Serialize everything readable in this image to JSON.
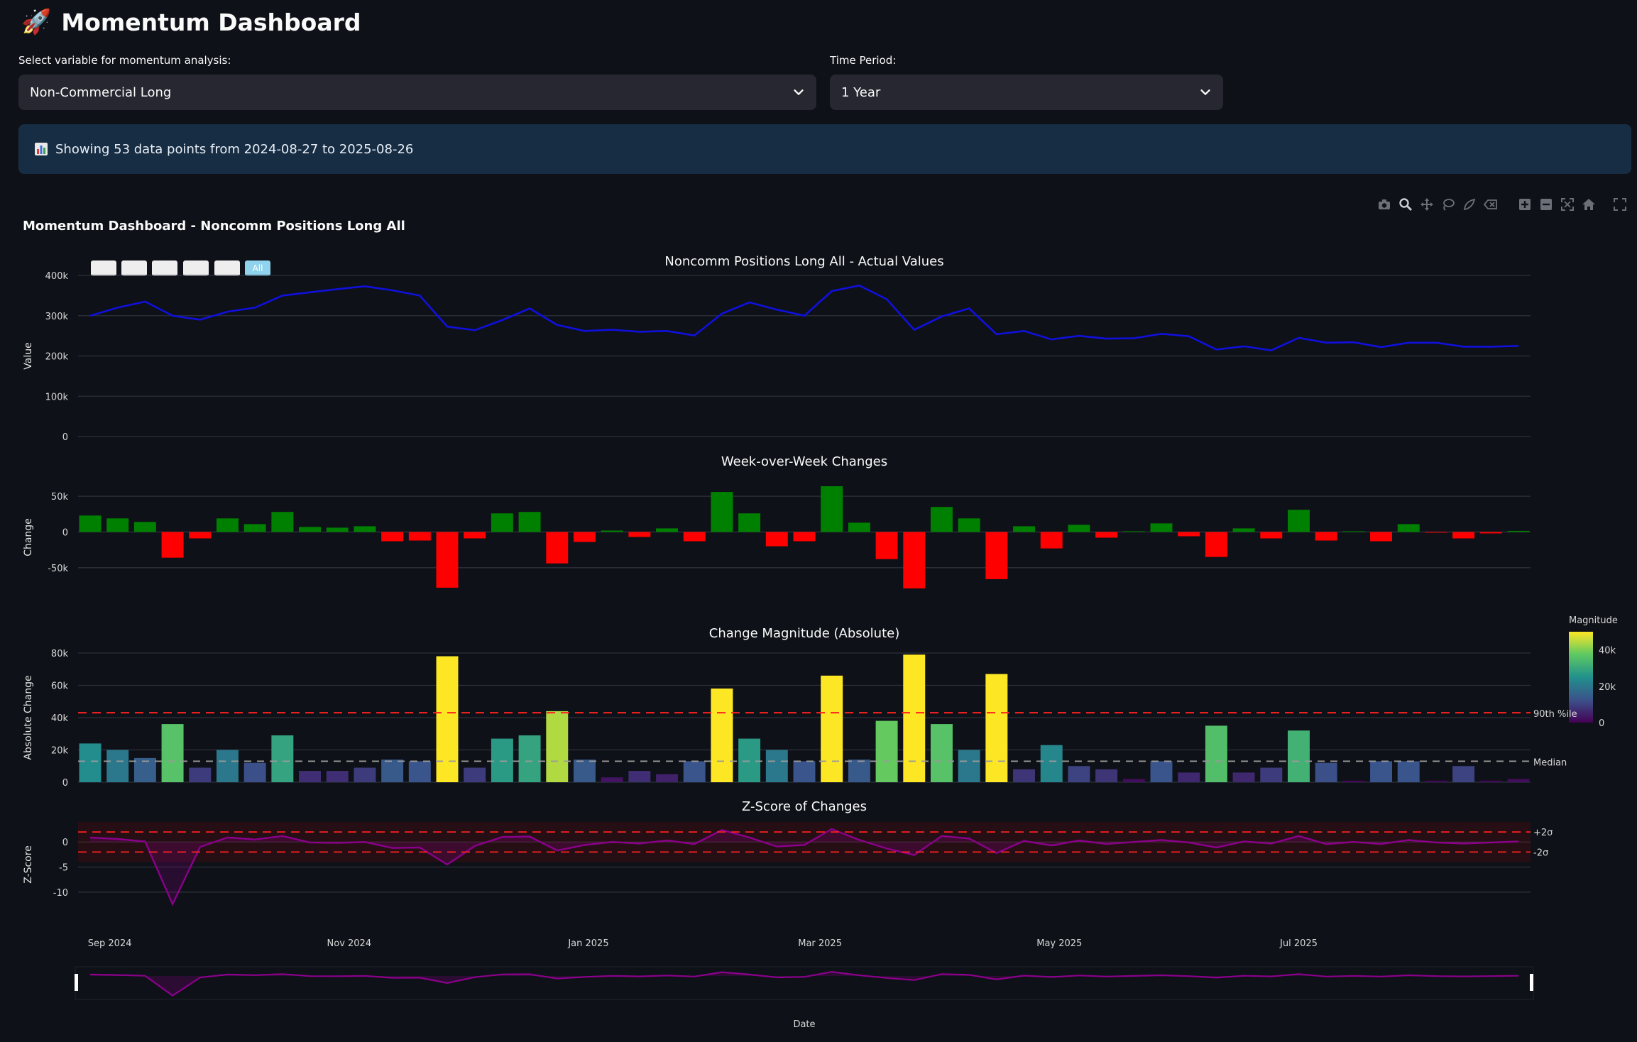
{
  "app": {
    "title": "Momentum Dashboard",
    "title_icon": "rocket-icon"
  },
  "controls": {
    "variable_label": "Select variable for momentum analysis:",
    "variable_value": "Non-Commercial Long",
    "period_label": "Time Period:",
    "period_value": "1 Year"
  },
  "info": {
    "icon": "bar-chart-icon",
    "text": "Showing 53 data points from 2024-08-27 to 2025-08-26"
  },
  "modebar": {
    "icons": [
      "camera-icon",
      "zoom-icon",
      "pan-icon",
      "lasso-icon",
      "select-icon",
      "erase-icon",
      "zoom-in-icon",
      "zoom-out-icon",
      "autoscale-icon",
      "reset-axes-icon",
      "fullscreen-icon"
    ]
  },
  "range_selector": {
    "buttons": [
      "",
      "",
      "",
      "",
      "",
      "All"
    ],
    "active": 5
  },
  "chart_data": {
    "type": "line",
    "title": "Momentum Dashboard - Noncomm Positions Long All",
    "x": [
      "2024-08-27",
      "2024-09-03",
      "2024-09-10",
      "2024-09-17",
      "2024-09-24",
      "2024-10-01",
      "2024-10-08",
      "2024-10-15",
      "2024-10-22",
      "2024-10-29",
      "2024-11-05",
      "2024-11-12",
      "2024-11-19",
      "2024-11-26",
      "2024-12-03",
      "2024-12-10",
      "2024-12-17",
      "2024-12-24",
      "2024-12-31",
      "2025-01-07",
      "2025-01-14",
      "2025-01-21",
      "2025-01-28",
      "2025-02-04",
      "2025-02-11",
      "2025-02-18",
      "2025-02-25",
      "2025-03-04",
      "2025-03-11",
      "2025-03-18",
      "2025-03-25",
      "2025-04-01",
      "2025-04-08",
      "2025-04-15",
      "2025-04-22",
      "2025-04-29",
      "2025-05-06",
      "2025-05-13",
      "2025-05-20",
      "2025-05-27",
      "2025-06-03",
      "2025-06-10",
      "2025-06-17",
      "2025-06-24",
      "2025-07-01",
      "2025-07-08",
      "2025-07-15",
      "2025-07-22",
      "2025-07-29",
      "2025-08-05",
      "2025-08-12",
      "2025-08-19",
      "2025-08-26"
    ],
    "xlabel": "Date",
    "x_ticks": [
      {
        "date": "2024-09-01",
        "label": "Sep 2024"
      },
      {
        "date": "2024-11-01",
        "label": "Nov 2024"
      },
      {
        "date": "2025-01-01",
        "label": "Jan 2025"
      },
      {
        "date": "2025-03-01",
        "label": "Mar 2025"
      },
      {
        "date": "2025-05-01",
        "label": "May 2025"
      },
      {
        "date": "2025-07-01",
        "label": "Jul 2025"
      }
    ],
    "subplots": [
      {
        "title": "Noncomm Positions Long All - Actual Values",
        "ylabel": "Value",
        "ylim": [
          0,
          400000
        ],
        "yticks": [
          {
            "v": 0,
            "t": "0"
          },
          {
            "v": 100000,
            "t": "100k"
          },
          {
            "v": 200000,
            "t": "200k"
          },
          {
            "v": 300000,
            "t": "300k"
          },
          {
            "v": 400000,
            "t": "400k"
          }
        ],
        "series": [
          {
            "type": "line",
            "color": "#1010dd",
            "values": [
              300000,
              320000,
              335000,
              300000,
              290000,
              310000,
              320000,
              350000,
              358000,
              366000,
              373000,
              363000,
              350000,
              273000,
              264000,
              289000,
              318000,
              277000,
              262000,
              265000,
              260000,
              262000,
              251000,
              305000,
              333000,
              315000,
              300000,
              361000,
              375000,
              341000,
              265000,
              298000,
              318000,
              254000,
              262000,
              241000,
              250000,
              243000,
              244000,
              255000,
              249000,
              216000,
              224000,
              214000,
              245000,
              233000,
              234000,
              222000,
              233000,
              233000,
              223000,
              223000,
              225000
            ]
          }
        ]
      },
      {
        "title": "Week-over-Week Changes",
        "ylabel": "Change",
        "ylim": [
          -80000,
          65000
        ],
        "yticks": [
          {
            "v": -50000,
            "t": "-50k"
          },
          {
            "v": 0,
            "t": "0"
          },
          {
            "v": 50000,
            "t": "50k"
          }
        ],
        "pos_color": "#008000",
        "neg_color": "#ff0000",
        "series": [
          {
            "type": "bar",
            "values": [
              23000,
              19000,
              14000,
              -36000,
              -9000,
              19000,
              11000,
              28000,
              7000,
              6000,
              8000,
              -13000,
              -12000,
              -78000,
              -9000,
              26000,
              28000,
              -44000,
              -14000,
              2000,
              -7000,
              5000,
              -13000,
              56000,
              26000,
              -20000,
              -13000,
              64000,
              13000,
              -38000,
              -79000,
              35000,
              19000,
              -66000,
              8000,
              -23000,
              10000,
              -8000,
              1000,
              12000,
              -6000,
              -35000,
              5000,
              -9000,
              31000,
              -12000,
              1000,
              -13000,
              11000,
              -1000,
              -9000,
              -2000,
              1500
            ]
          }
        ]
      },
      {
        "title": "Change Magnitude (Absolute)",
        "ylabel": "Absolute Change",
        "ylim": [
          0,
          80000
        ],
        "yticks": [
          {
            "v": 0,
            "t": "0"
          },
          {
            "v": 20000,
            "t": "20k"
          },
          {
            "v": 40000,
            "t": "40k"
          },
          {
            "v": 60000,
            "t": "60k"
          },
          {
            "v": 80000,
            "t": "80k"
          }
        ],
        "p90": 43000,
        "p90_label": "90th %ile",
        "median": 13000,
        "median_label": "Median",
        "colorbar": {
          "title": "Magnitude",
          "range": [
            0,
            50000
          ],
          "ticks": [
            {
              "v": 0,
              "t": "0"
            },
            {
              "v": 20000,
              "t": "20k"
            },
            {
              "v": 40000,
              "t": "40k"
            }
          ]
        },
        "series": [
          {
            "type": "bar",
            "values": [
              24000,
              20000,
              15000,
              36000,
              9000,
              20000,
              12000,
              29000,
              7000,
              7000,
              9000,
              14000,
              13000,
              78000,
              9000,
              27000,
              29000,
              44000,
              14000,
              3000,
              7000,
              5000,
              13000,
              58000,
              27000,
              20000,
              13000,
              66000,
              14000,
              38000,
              79000,
              36000,
              20000,
              67000,
              8000,
              23000,
              10000,
              8000,
              2000,
              13000,
              6000,
              35000,
              6000,
              9000,
              32000,
              12000,
              1000,
              13000,
              13000,
              1000,
              10000,
              1000,
              2000
            ]
          }
        ]
      },
      {
        "title": "Z-Score of Changes",
        "ylabel": "Z-Score",
        "ylim": [
          -13,
          4
        ],
        "yticks": [
          {
            "v": -10,
            "t": "-10"
          },
          {
            "v": -5,
            "t": "-5"
          },
          {
            "v": 0,
            "t": "0"
          }
        ],
        "band": [
          -4,
          4
        ],
        "plus2_label": "+2σ",
        "minus2_label": "-2σ",
        "series": [
          {
            "type": "line",
            "color": "#8b008b",
            "values": [
              0.9,
              0.6,
              0.1,
              -12.4,
              -1.0,
              0.9,
              0.5,
              1.2,
              -0.1,
              -0.2,
              0.0,
              -1.2,
              -1.1,
              -4.5,
              -0.8,
              1.0,
              1.1,
              -1.7,
              -0.6,
              0.0,
              -0.3,
              0.3,
              -0.4,
              2.4,
              0.9,
              -0.9,
              -0.6,
              2.6,
              0.4,
              -1.3,
              -2.6,
              1.2,
              0.7,
              -2.2,
              0.2,
              -0.7,
              0.3,
              -0.4,
              0.0,
              0.4,
              -0.1,
              -1.1,
              0.1,
              -0.3,
              1.2,
              -0.4,
              0.0,
              -0.4,
              0.4,
              -0.1,
              -0.3,
              -0.1,
              0.1
            ]
          }
        ]
      }
    ]
  }
}
